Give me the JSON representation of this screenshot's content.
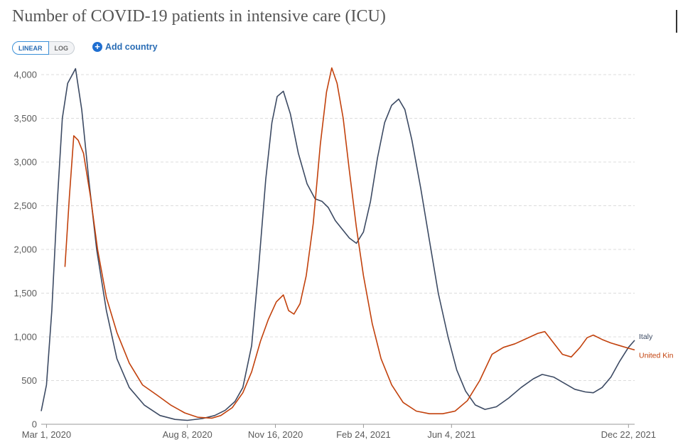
{
  "title": "Number of COVID-19 patients in intensive care (ICU)",
  "controls": {
    "linear": "LINEAR",
    "log": "LOG",
    "add_country": "Add country"
  },
  "colors": {
    "Italy": "#3c4a63",
    "United Kingdom": "#c2410c",
    "grid": "#dcdcdc"
  },
  "chart_data": {
    "type": "line",
    "title": "Number of COVID-19 patients in intensive care (ICU)",
    "xlabel": "",
    "ylabel": "",
    "x_range": [
      "2020-02-24",
      "2021-12-29"
    ],
    "ylim": [
      0,
      4000
    ],
    "y_ticks": [
      0,
      500,
      1000,
      1500,
      2000,
      2500,
      3000,
      3500,
      4000
    ],
    "y_tick_labels": [
      "0",
      "500",
      "1,000",
      "1,500",
      "2,000",
      "2,500",
      "3,000",
      "3,500",
      "4,000"
    ],
    "x_ticks": [
      "2020-03-01",
      "2020-08-08",
      "2020-11-16",
      "2021-02-24",
      "2021-06-04",
      "2021-12-22"
    ],
    "x_tick_labels": [
      "Mar 1, 2020",
      "Aug 8, 2020",
      "Nov 16, 2020",
      "Feb 24, 2021",
      "Jun 4, 2021",
      "Dec 22, 2021"
    ],
    "grid": true,
    "legend": "right-end labels",
    "series": [
      {
        "name": "Italy",
        "label": "Italy",
        "color": "#3c4a63",
        "points": [
          [
            "2020-02-24",
            150
          ],
          [
            "2020-03-01",
            450
          ],
          [
            "2020-03-07",
            1300
          ],
          [
            "2020-03-13",
            2500
          ],
          [
            "2020-03-19",
            3500
          ],
          [
            "2020-03-25",
            3900
          ],
          [
            "2020-04-03",
            4068
          ],
          [
            "2020-04-10",
            3600
          ],
          [
            "2020-04-18",
            2800
          ],
          [
            "2020-04-27",
            2000
          ],
          [
            "2020-05-08",
            1300
          ],
          [
            "2020-05-20",
            750
          ],
          [
            "2020-06-03",
            420
          ],
          [
            "2020-06-20",
            220
          ],
          [
            "2020-07-08",
            100
          ],
          [
            "2020-07-25",
            55
          ],
          [
            "2020-08-08",
            45
          ],
          [
            "2020-08-25",
            65
          ],
          [
            "2020-09-08",
            100
          ],
          [
            "2020-09-20",
            160
          ],
          [
            "2020-10-01",
            260
          ],
          [
            "2020-10-10",
            420
          ],
          [
            "2020-10-20",
            900
          ],
          [
            "2020-10-28",
            1800
          ],
          [
            "2020-11-05",
            2800
          ],
          [
            "2020-11-12",
            3450
          ],
          [
            "2020-11-18",
            3750
          ],
          [
            "2020-11-25",
            3810
          ],
          [
            "2020-12-03",
            3550
          ],
          [
            "2020-12-12",
            3100
          ],
          [
            "2020-12-22",
            2750
          ],
          [
            "2020-12-31",
            2580
          ],
          [
            "2021-01-08",
            2550
          ],
          [
            "2021-01-15",
            2480
          ],
          [
            "2021-01-23",
            2330
          ],
          [
            "2021-01-31",
            2230
          ],
          [
            "2021-02-08",
            2130
          ],
          [
            "2021-02-16",
            2070
          ],
          [
            "2021-02-24",
            2200
          ],
          [
            "2021-03-04",
            2550
          ],
          [
            "2021-03-12",
            3050
          ],
          [
            "2021-03-20",
            3450
          ],
          [
            "2021-03-28",
            3650
          ],
          [
            "2021-04-05",
            3720
          ],
          [
            "2021-04-12",
            3600
          ],
          [
            "2021-04-20",
            3250
          ],
          [
            "2021-04-30",
            2700
          ],
          [
            "2021-05-10",
            2100
          ],
          [
            "2021-05-20",
            1500
          ],
          [
            "2021-05-31",
            1000
          ],
          [
            "2021-06-10",
            620
          ],
          [
            "2021-06-20",
            380
          ],
          [
            "2021-07-01",
            220
          ],
          [
            "2021-07-12",
            170
          ],
          [
            "2021-07-25",
            200
          ],
          [
            "2021-08-08",
            300
          ],
          [
            "2021-08-22",
            420
          ],
          [
            "2021-09-05",
            520
          ],
          [
            "2021-09-15",
            570
          ],
          [
            "2021-09-28",
            540
          ],
          [
            "2021-10-10",
            470
          ],
          [
            "2021-10-22",
            400
          ],
          [
            "2021-11-03",
            370
          ],
          [
            "2021-11-12",
            360
          ],
          [
            "2021-11-22",
            420
          ],
          [
            "2021-12-02",
            540
          ],
          [
            "2021-12-12",
            720
          ],
          [
            "2021-12-22",
            880
          ],
          [
            "2021-12-29",
            960
          ]
        ]
      },
      {
        "name": "United Kingdom",
        "label": "United Kin",
        "color": "#c2410c",
        "points": [
          [
            "2020-03-22",
            1800
          ],
          [
            "2020-03-27",
            2600
          ],
          [
            "2020-04-01",
            3300
          ],
          [
            "2020-04-06",
            3250
          ],
          [
            "2020-04-12",
            3100
          ],
          [
            "2020-04-20",
            2600
          ],
          [
            "2020-04-28",
            2000
          ],
          [
            "2020-05-08",
            1450
          ],
          [
            "2020-05-20",
            1050
          ],
          [
            "2020-06-03",
            700
          ],
          [
            "2020-06-18",
            450
          ],
          [
            "2020-07-05",
            330
          ],
          [
            "2020-07-20",
            220
          ],
          [
            "2020-08-05",
            130
          ],
          [
            "2020-08-20",
            80
          ],
          [
            "2020-09-05",
            70
          ],
          [
            "2020-09-15",
            100
          ],
          [
            "2020-09-28",
            190
          ],
          [
            "2020-10-10",
            360
          ],
          [
            "2020-10-20",
            600
          ],
          [
            "2020-10-30",
            950
          ],
          [
            "2020-11-08",
            1200
          ],
          [
            "2020-11-17",
            1400
          ],
          [
            "2020-11-25",
            1480
          ],
          [
            "2020-12-01",
            1300
          ],
          [
            "2020-12-07",
            1260
          ],
          [
            "2020-12-14",
            1380
          ],
          [
            "2020-12-21",
            1700
          ],
          [
            "2020-12-29",
            2300
          ],
          [
            "2021-01-06",
            3200
          ],
          [
            "2021-01-13",
            3800
          ],
          [
            "2021-01-19",
            4077
          ],
          [
            "2021-01-25",
            3900
          ],
          [
            "2021-02-01",
            3500
          ],
          [
            "2021-02-08",
            2900
          ],
          [
            "2021-02-16",
            2250
          ],
          [
            "2021-02-24",
            1700
          ],
          [
            "2021-03-06",
            1150
          ],
          [
            "2021-03-16",
            750
          ],
          [
            "2021-03-28",
            450
          ],
          [
            "2021-04-10",
            250
          ],
          [
            "2021-04-25",
            150
          ],
          [
            "2021-05-10",
            120
          ],
          [
            "2021-05-25",
            120
          ],
          [
            "2021-06-08",
            150
          ],
          [
            "2021-06-22",
            270
          ],
          [
            "2021-07-06",
            500
          ],
          [
            "2021-07-20",
            800
          ],
          [
            "2021-08-02",
            880
          ],
          [
            "2021-08-15",
            920
          ],
          [
            "2021-08-28",
            980
          ],
          [
            "2021-09-10",
            1040
          ],
          [
            "2021-09-18",
            1060
          ],
          [
            "2021-09-28",
            930
          ],
          [
            "2021-10-08",
            800
          ],
          [
            "2021-10-18",
            770
          ],
          [
            "2021-10-28",
            880
          ],
          [
            "2021-11-05",
            990
          ],
          [
            "2021-11-12",
            1020
          ],
          [
            "2021-11-22",
            970
          ],
          [
            "2021-12-02",
            930
          ],
          [
            "2021-12-12",
            900
          ],
          [
            "2021-12-22",
            870
          ],
          [
            "2021-12-29",
            850
          ]
        ]
      }
    ]
  }
}
